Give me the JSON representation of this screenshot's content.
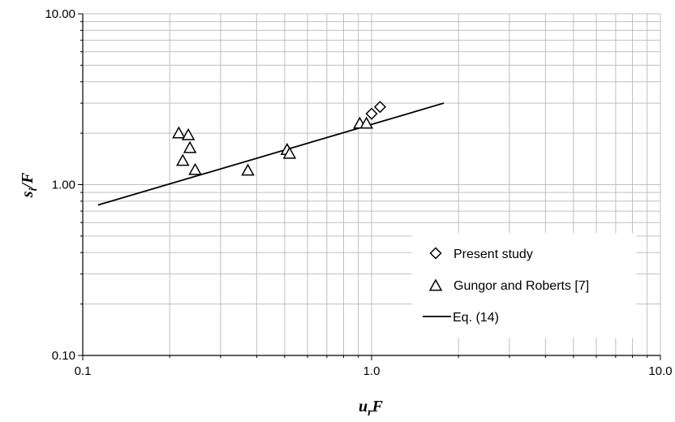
{
  "chart_data": {
    "type": "scatter",
    "title": "",
    "x_scale": "log",
    "y_scale": "log",
    "xlim": [
      0.1,
      10.0
    ],
    "ylim": [
      0.1,
      10.0
    ],
    "x_tick_labels": [
      "0.1",
      "1.0",
      "10.0"
    ],
    "y_tick_labels": [
      "0.10",
      "1.00",
      "10.00"
    ],
    "grid": true,
    "legend_position": "lower-right",
    "xlabel": {
      "main": "u",
      "sub": "r",
      "tail": "F"
    },
    "ylabel": {
      "main": "s",
      "sub": "i",
      "tail": "/F"
    },
    "series": [
      {
        "name": "Present study",
        "marker": "diamond",
        "points": [
          [
            1.0,
            2.6
          ],
          [
            1.07,
            2.85
          ]
        ]
      },
      {
        "name": "Gungor and Roberts  [7]",
        "marker": "triangle",
        "points": [
          [
            0.215,
            2.0
          ],
          [
            0.222,
            1.38
          ],
          [
            0.232,
            1.95
          ],
          [
            0.235,
            1.64
          ],
          [
            0.245,
            1.22
          ],
          [
            0.373,
            1.21
          ],
          [
            0.51,
            1.6
          ],
          [
            0.52,
            1.52
          ],
          [
            0.91,
            2.28
          ],
          [
            0.96,
            2.28
          ]
        ]
      },
      {
        "name": "Eq. (14)",
        "marker": "line",
        "points": [
          [
            0.113,
            0.76
          ],
          [
            1.78,
            3.0
          ]
        ]
      }
    ]
  }
}
